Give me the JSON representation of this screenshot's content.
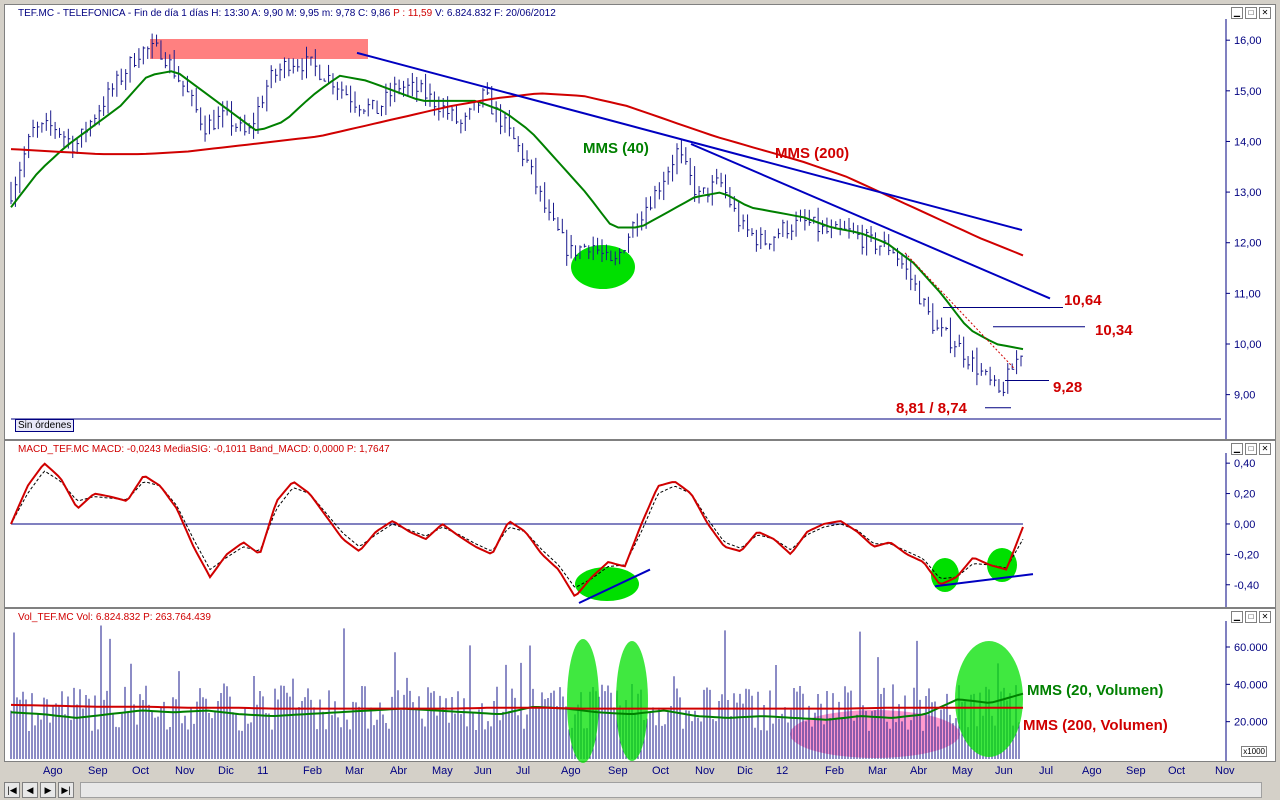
{
  "price_header": {
    "symbol": "TEF.MC - TELEFONICA",
    "period": "- Fin de día 1 días",
    "h": "H: 13:30",
    "a": "A: 9,90",
    "m": "M: 9,95",
    "mm": "m: 9,78",
    "c": "C: 9,86",
    "p": "P : 11,59",
    "v": "V: 6.824.832",
    "f": "F: 20/06/2012"
  },
  "macd_header": {
    "name": "MACD_TEF.MC",
    "macd": "MACD: -0,0243",
    "signal": "MediaSIG: -0,1011",
    "band": "Band_MACD: 0,0000",
    "p": "P: 1,7647"
  },
  "vol_header": {
    "name": "Vol_TEF.MC",
    "vol": "Vol: 6.824.832",
    "p": "P: 263.764.439"
  },
  "sin_ordenes": "Sin órdenes",
  "window_buttons": [
    "▁",
    "□",
    "✕"
  ],
  "scale_box": "x1000",
  "nav_buttons": [
    "|◀",
    "◀",
    "▶",
    "▶|"
  ],
  "colors": {
    "price_bars": "#1a1a8c",
    "mms40": "#008000",
    "mms200": "#d00000",
    "trendline": "#0000c0",
    "highlight_green": "#00e000",
    "highlight_red": "#ff8080",
    "axis": "#000080"
  },
  "chart_data": [
    {
      "type": "bar",
      "name": "price",
      "x_labels": [
        "Ago",
        "Sep",
        "Oct",
        "Nov",
        "Dic",
        "11",
        "Feb",
        "Mar",
        "Abr",
        "May",
        "Jun",
        "Jul",
        "Ago",
        "Sep",
        "Oct",
        "Nov",
        "Dic",
        "12",
        "Feb",
        "Mar",
        "Abr",
        "May",
        "Jun",
        "Jul",
        "Ago",
        "Sep",
        "Oct",
        "Nov"
      ],
      "y_ticks": [
        "16,00",
        "15,00",
        "14,00",
        "13,00",
        "12,00",
        "11,00",
        "10,00",
        "9,00"
      ],
      "ylim": [
        8.4,
        16.3
      ],
      "series": [
        {
          "name": "close",
          "values": [
            13.0,
            14.2,
            14.3,
            13.9,
            14.6,
            15.2,
            15.8,
            15.8,
            15.1,
            14.3,
            14.5,
            14.1,
            15.2,
            15.6,
            15.5,
            15.2,
            14.8,
            14.6,
            15.1,
            15.0,
            14.7,
            14.3,
            14.9,
            14.3,
            13.6,
            12.5,
            11.8,
            12.0,
            11.5,
            12.4,
            13.0,
            13.8,
            12.9,
            13.2,
            12.3,
            12.0,
            12.3,
            12.4,
            12.2,
            12.2,
            12.0,
            11.9,
            11.2,
            10.3,
            10.0,
            9.5,
            9.0,
            9.86
          ]
        },
        {
          "name": "MMS (40)",
          "values": [
            12.7,
            13.4,
            13.9,
            14.3,
            14.7,
            15.3,
            15.4,
            15.0,
            14.6,
            14.2,
            14.4,
            14.9,
            15.3,
            15.2,
            15.0,
            14.8,
            14.8,
            14.8,
            14.6,
            14.2,
            13.6,
            13.0,
            12.3,
            12.3,
            12.6,
            12.9,
            13.0,
            12.7,
            12.6,
            12.5,
            12.3,
            12.2,
            12.0,
            11.6,
            11.0,
            10.3,
            10.0,
            9.9
          ]
        },
        {
          "name": "MMS (200)",
          "values": [
            13.85,
            13.8,
            13.75,
            13.75,
            13.8,
            13.9,
            14.0,
            14.1,
            14.3,
            14.5,
            14.7,
            14.85,
            14.95,
            14.9,
            14.7,
            14.4,
            14.1,
            13.85,
            13.6,
            13.3,
            12.9,
            12.5,
            12.1,
            11.75
          ]
        }
      ],
      "annotations": [
        "MMS (40)",
        "MMS (200)",
        "10,64",
        "10,34",
        "9,28",
        "8,81 / 8,74"
      ]
    },
    {
      "type": "line",
      "name": "macd",
      "y_ticks": [
        "0,40",
        "0,20",
        "0,00",
        "-0,20",
        "-0,40"
      ],
      "ylim": [
        -0.52,
        0.48
      ],
      "series": [
        {
          "name": "MACD",
          "values": [
            0.0,
            0.25,
            0.4,
            0.3,
            0.1,
            0.2,
            0.18,
            0.15,
            0.32,
            0.25,
            0.1,
            -0.15,
            -0.35,
            -0.2,
            -0.12,
            -0.2,
            0.15,
            0.28,
            0.2,
            0.05,
            -0.1,
            -0.18,
            -0.05,
            0.02,
            -0.05,
            -0.1,
            0.0,
            -0.08,
            -0.15,
            -0.2,
            0.02,
            -0.05,
            -0.2,
            -0.3,
            -0.48,
            -0.35,
            -0.25,
            -0.28,
            0.0,
            0.25,
            0.28,
            0.2,
            0.0,
            -0.15,
            -0.18,
            -0.05,
            -0.1,
            -0.2,
            -0.05,
            0.0,
            0.02,
            -0.05,
            -0.15,
            -0.12,
            -0.2,
            -0.25,
            -0.4,
            -0.35,
            -0.22,
            -0.27,
            -0.3,
            -0.02
          ]
        },
        {
          "name": "MediaSIG",
          "values": [
            0.0,
            0.2,
            0.35,
            0.28,
            0.15,
            0.18,
            0.17,
            0.16,
            0.28,
            0.25,
            0.12,
            -0.1,
            -0.3,
            -0.22,
            -0.15,
            -0.18,
            0.1,
            0.24,
            0.2,
            0.07,
            -0.06,
            -0.15,
            -0.07,
            0.0,
            -0.04,
            -0.08,
            -0.02,
            -0.07,
            -0.13,
            -0.18,
            -0.02,
            -0.05,
            -0.17,
            -0.27,
            -0.42,
            -0.36,
            -0.28,
            -0.27,
            -0.05,
            0.2,
            0.25,
            0.2,
            0.03,
            -0.12,
            -0.16,
            -0.07,
            -0.1,
            -0.17,
            -0.07,
            -0.02,
            0.0,
            -0.04,
            -0.13,
            -0.13,
            -0.18,
            -0.23,
            -0.36,
            -0.35,
            -0.26,
            -0.27,
            -0.29,
            -0.1
          ]
        }
      ]
    },
    {
      "type": "bar",
      "name": "volume",
      "y_ticks": [
        "60.000",
        "40.000",
        "20.000"
      ],
      "ylim": [
        0,
        75000
      ],
      "series": [
        {
          "name": "MMS (20, Volumen)",
          "values": [
            25000,
            24000,
            22000,
            24000,
            26000,
            25000,
            26000,
            24000,
            23000,
            24000,
            25000,
            26000,
            27000,
            26000,
            25000,
            24000,
            28000,
            27000,
            25000,
            24000,
            26000,
            23000,
            22000,
            23000,
            22000,
            21000,
            23000,
            22000,
            24000,
            32000,
            30000,
            35000
          ]
        },
        {
          "name": "MMS (200, Volumen)",
          "values": [
            29000,
            28500,
            28000,
            28000,
            27500,
            27500,
            27000,
            27000,
            27000,
            27000,
            27000,
            27500,
            27500,
            27000,
            27000,
            27000,
            27000,
            27000,
            27000,
            27000,
            27500,
            27500,
            27500,
            27500
          ]
        }
      ],
      "annotations": [
        "MMS (20, Volumen)",
        "MMS (200, Volumen)"
      ]
    }
  ]
}
